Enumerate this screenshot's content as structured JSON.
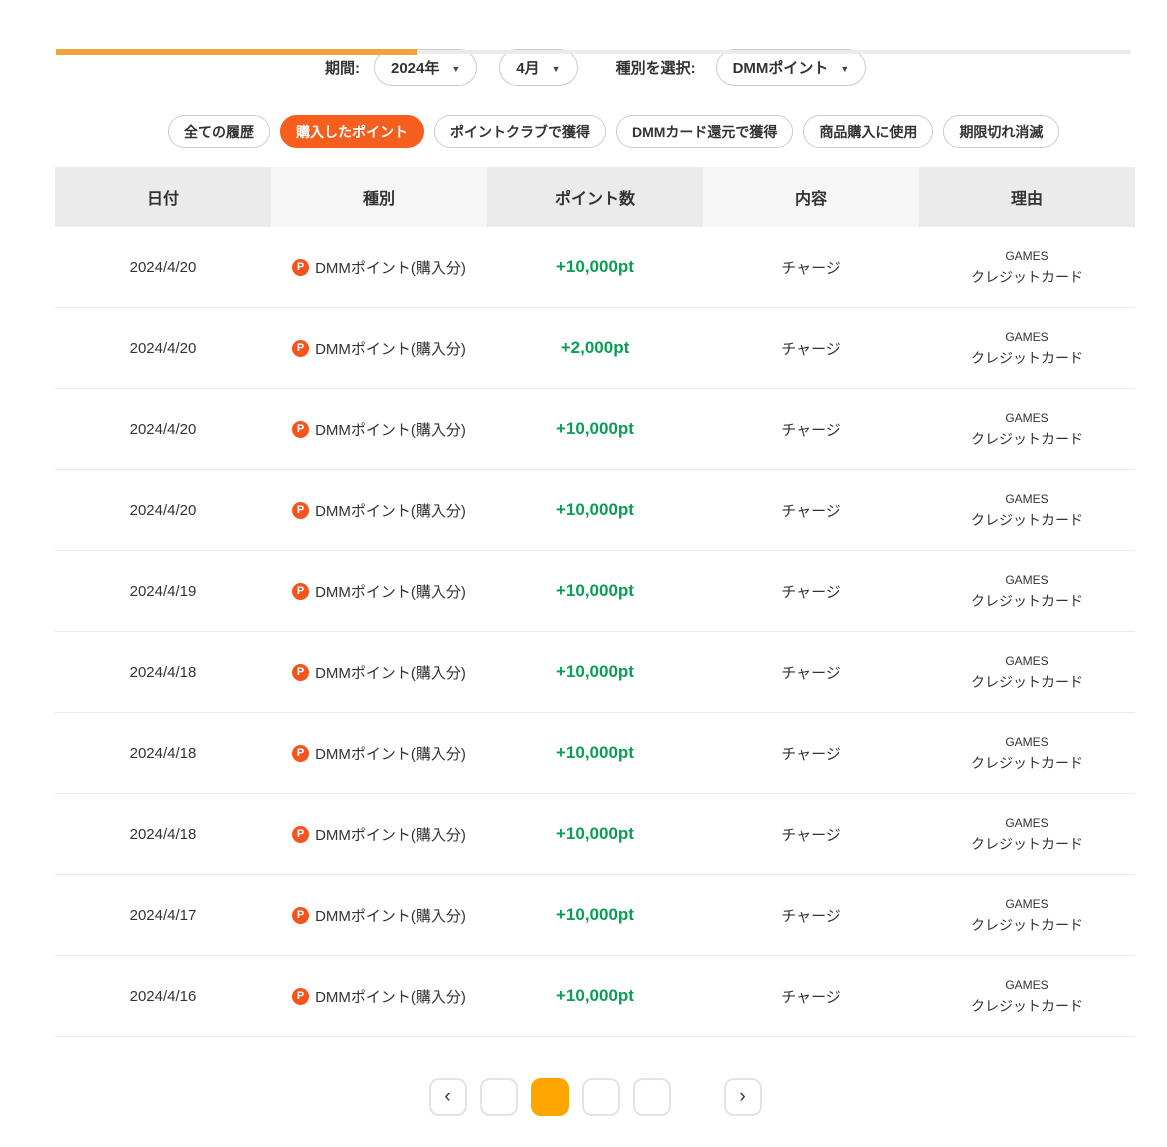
{
  "colors": {
    "tab_underline_orange": "#f0a43c",
    "active_pill_orange": "#f55e1d",
    "point_icon_orange": "#f4541d",
    "points_green": "#0a9e55",
    "pagination_active_orange": "#ffa502"
  },
  "filters": {
    "period_label": "期間:",
    "year_value": "2024年",
    "month_value": "4月",
    "type_label": "種別を選択:",
    "type_value": "DMMポイント",
    "dropdown_icon": "▼"
  },
  "history_tabs": [
    {
      "label": "全ての履歴",
      "active": false
    },
    {
      "label": "購入したポイント",
      "active": true
    },
    {
      "label": "ポイントクラブで獲得",
      "active": false
    },
    {
      "label": "DMMカード還元で獲得",
      "active": false
    },
    {
      "label": "商品購入に使用",
      "active": false
    },
    {
      "label": "期限切れ消滅",
      "active": false
    }
  ],
  "table": {
    "headers": [
      "日付",
      "種別",
      "ポイント数",
      "内容",
      "理由"
    ],
    "point_icon_letter": "P",
    "rows": [
      {
        "date": "2024/4/20",
        "type": "DMMポイント(購入分)",
        "points": "+10,000pt",
        "content": "チャージ",
        "reason1": "GAMES",
        "reason2": "クレジットカード"
      },
      {
        "date": "2024/4/20",
        "type": "DMMポイント(購入分)",
        "points": "+2,000pt",
        "content": "チャージ",
        "reason1": "GAMES",
        "reason2": "クレジットカード"
      },
      {
        "date": "2024/4/20",
        "type": "DMMポイント(購入分)",
        "points": "+10,000pt",
        "content": "チャージ",
        "reason1": "GAMES",
        "reason2": "クレジットカード"
      },
      {
        "date": "2024/4/20",
        "type": "DMMポイント(購入分)",
        "points": "+10,000pt",
        "content": "チャージ",
        "reason1": "GAMES",
        "reason2": "クレジットカード"
      },
      {
        "date": "2024/4/19",
        "type": "DMMポイント(購入分)",
        "points": "+10,000pt",
        "content": "チャージ",
        "reason1": "GAMES",
        "reason2": "クレジットカード"
      },
      {
        "date": "2024/4/18",
        "type": "DMMポイント(購入分)",
        "points": "+10,000pt",
        "content": "チャージ",
        "reason1": "GAMES",
        "reason2": "クレジットカード"
      },
      {
        "date": "2024/4/18",
        "type": "DMMポイント(購入分)",
        "points": "+10,000pt",
        "content": "チャージ",
        "reason1": "GAMES",
        "reason2": "クレジットカード"
      },
      {
        "date": "2024/4/18",
        "type": "DMMポイント(購入分)",
        "points": "+10,000pt",
        "content": "チャージ",
        "reason1": "GAMES",
        "reason2": "クレジットカード"
      },
      {
        "date": "2024/4/17",
        "type": "DMMポイント(購入分)",
        "points": "+10,000pt",
        "content": "チャージ",
        "reason1": "GAMES",
        "reason2": "クレジットカード"
      },
      {
        "date": "2024/4/16",
        "type": "DMMポイント(購入分)",
        "points": "+10,000pt",
        "content": "チャージ",
        "reason1": "GAMES",
        "reason2": "クレジットカード"
      }
    ]
  },
  "pagination": {
    "items": [
      {
        "kind": "prev",
        "label": "‹",
        "active": false
      },
      {
        "kind": "page",
        "label": "",
        "active": false
      },
      {
        "kind": "page",
        "label": "",
        "active": true
      },
      {
        "kind": "page",
        "label": "",
        "active": false
      },
      {
        "kind": "page",
        "label": "",
        "active": false
      },
      {
        "kind": "gap",
        "label": "",
        "active": false
      },
      {
        "kind": "next",
        "label": "›",
        "active": false
      }
    ]
  }
}
